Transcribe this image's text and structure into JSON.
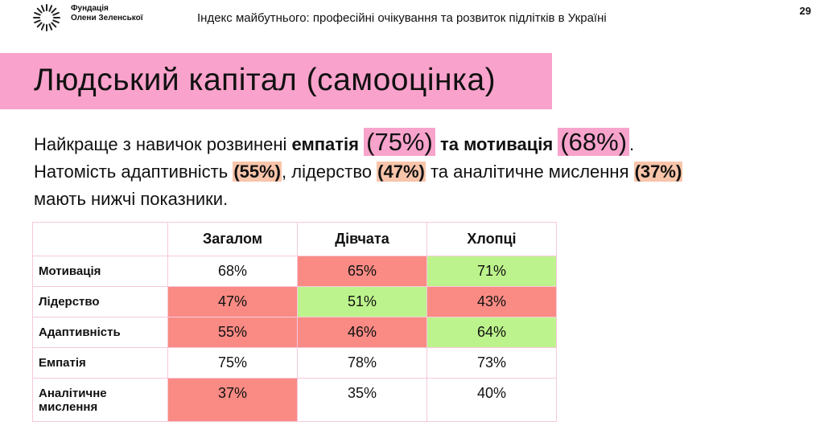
{
  "header": {
    "logo": [
      "Фундація",
      "Олени Зеленської"
    ],
    "title": "Індекс майбутнього: професійні очікування та розвиток підлітків в Україні",
    "page": "29"
  },
  "heading": "Людський капітал (самооцінка)",
  "paragraph": [
    "Найкраще з навичок розвинені ",
    "емпатія",
    "(75%)",
    "та мотивація",
    "(68%)",
    ".",
    "Натомість адаптивність ",
    "(55%)",
    ", лідерство ",
    "(47%)",
    " та аналітичне мислення ",
    "(37%)",
    "мають нижчі показники."
  ],
  "table": {
    "columns": [
      "Загалом",
      "Дівчата",
      "Хлопці"
    ],
    "rows": [
      {
        "label": "Мотивація",
        "cells": [
          "68%",
          "65%",
          "71%"
        ],
        "fills": [
          "#ffffff",
          "#f98b84",
          "#bdf38c"
        ]
      },
      {
        "label": "Лідерство",
        "cells": [
          "47%",
          "51%",
          "43%"
        ],
        "fills": [
          "#f98b84",
          "#bdf38c",
          "#f98b84"
        ]
      },
      {
        "label": "Адаптивність",
        "cells": [
          "55%",
          "46%",
          "64%"
        ],
        "fills": [
          "#f98b84",
          "#f98b84",
          "#bdf38c"
        ]
      },
      {
        "label": "Емпатія",
        "cells": [
          "75%",
          "78%",
          "73%"
        ],
        "fills": [
          "#ffffff",
          "#ffffff",
          "#ffffff"
        ]
      },
      {
        "label": "Аналітичне мислення",
        "cells": [
          "37%",
          "35%",
          "40%"
        ],
        "fills": [
          "#f98b84",
          "#ffffff",
          "#ffffff"
        ]
      }
    ]
  }
}
